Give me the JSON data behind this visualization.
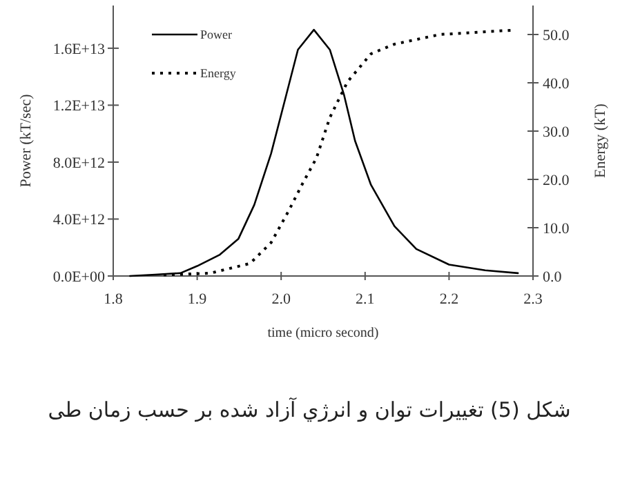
{
  "chart_data": {
    "type": "line",
    "xlabel": "time (micro second)",
    "ylabel": "Power (kT/sec)",
    "y2label": "Energy (kT)",
    "annotations": [
      "شکل (5) تغییرات توان و انرژي آزاد شده بر حسب زمان طی"
    ],
    "xlim": [
      1.8,
      2.3
    ],
    "xticks": [
      1.8,
      1.9,
      {
        "value": 2.0,
        "label": "2.0"
      },
      2.1,
      2.2,
      2.3
    ],
    "ylim": [
      0,
      19000000000000.0
    ],
    "yticks": [
      {
        "value": 0,
        "label": "0.0E+00"
      },
      {
        "value": 4000000000000.0,
        "label": "4.0E+12"
      },
      {
        "value": 8000000000000.0,
        "label": "8.0E+12"
      },
      {
        "value": 12000000000000.0,
        "label": "1.2E+13"
      },
      {
        "value": 16000000000000.0,
        "label": "1.6E+13"
      }
    ],
    "y2lim": [
      0,
      56
    ],
    "y2ticks": [
      {
        "value": 0,
        "label": "0.0"
      },
      {
        "value": 10,
        "label": "10.0"
      },
      {
        "value": 20,
        "label": "20.0"
      },
      {
        "value": 30,
        "label": "30.0"
      },
      {
        "value": 40,
        "label": "40.0"
      },
      {
        "value": 50,
        "label": "50.0"
      }
    ],
    "legend": "top left",
    "grid": false,
    "marker": "none",
    "series": [
      {
        "name": "Power",
        "color": "#000000",
        "line_style": "solid",
        "x": [
          1.82,
          1.85,
          1.88,
          1.9,
          1.927,
          1.949,
          1.968,
          1.988,
          2.006,
          2.02,
          2.039,
          2.058,
          2.075,
          2.088,
          2.107,
          2.135,
          2.161,
          2.2,
          2.243,
          2.282
        ],
        "values": [
          0,
          100000000000.0,
          200000000000.0,
          700000000000.0,
          1500000000000.0,
          2600000000000.0,
          5000000000000.0,
          8600000000000.0,
          12700000000000.0,
          15900000000000.0,
          17300000000000.0,
          15900000000000.0,
          12700000000000.0,
          9500000000000.0,
          6400000000000.0,
          3500000000000.0,
          1900000000000.0,
          800000000000.0,
          400000000000.0,
          200000000000.0
        ]
      },
      {
        "name": "Energy",
        "color": "#000000",
        "line_style": "dotted",
        "axis": "y2",
        "x": [
          1.86,
          1.916,
          1.963,
          1.988,
          2.009,
          2.026,
          2.042,
          2.058,
          2.079,
          2.107,
          2.135,
          2.189,
          2.276
        ],
        "values": [
          0.2,
          0.6,
          2.6,
          6.9,
          13.5,
          19.3,
          24.4,
          32.8,
          40.2,
          46,
          48,
          50,
          50.9
        ]
      }
    ]
  }
}
